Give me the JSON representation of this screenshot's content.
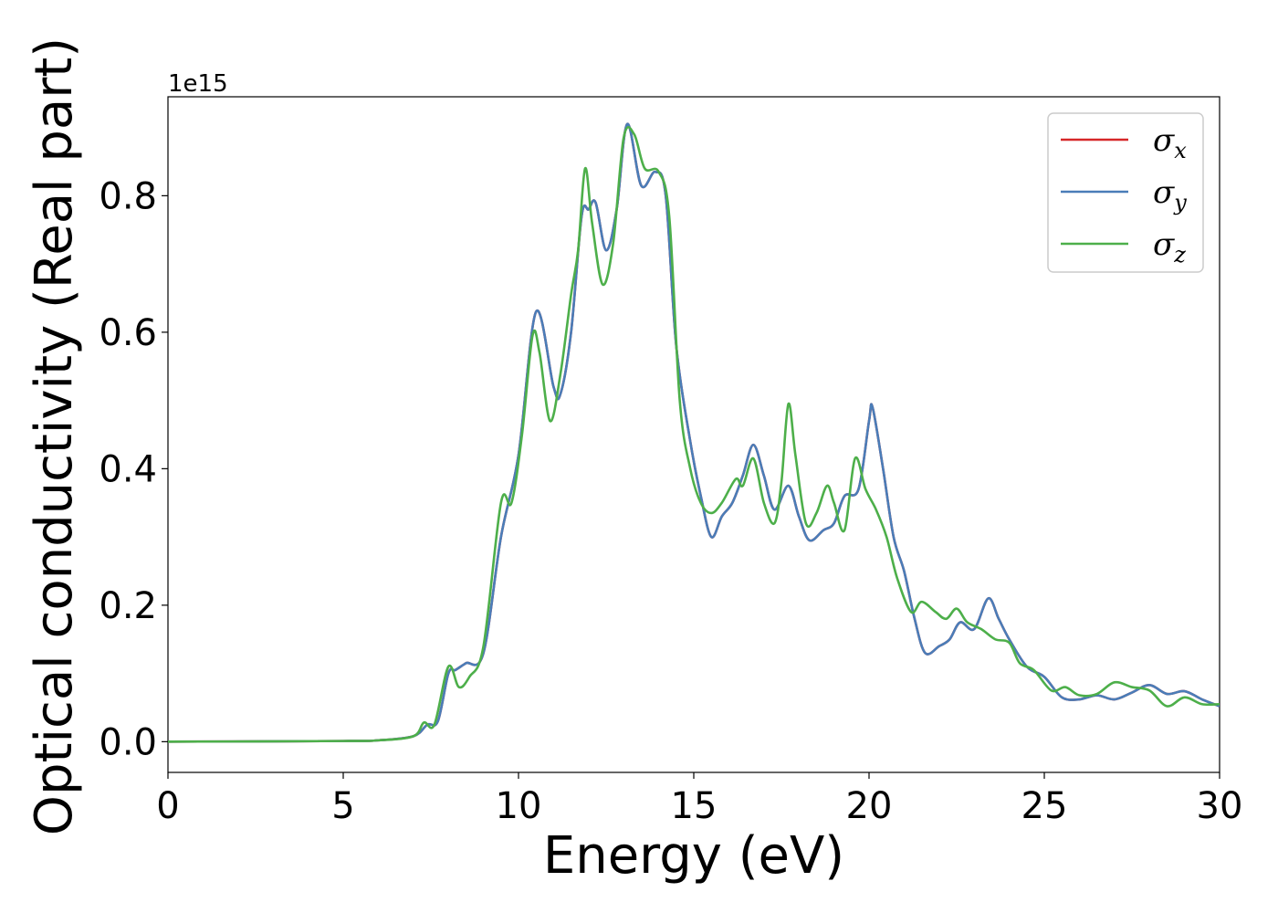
{
  "chart_data": {
    "type": "line",
    "xlabel": "Energy (eV)",
    "ylabel": "Optical conductivity (Real part)",
    "y_offset_label": "1e15",
    "xlim": [
      0,
      30
    ],
    "ylim": [
      -0.045,
      0.945
    ],
    "x_ticks": [
      0,
      5,
      10,
      15,
      20,
      25,
      30
    ],
    "y_ticks": [
      0.0,
      0.2,
      0.4,
      0.6,
      0.8
    ],
    "x_tick_labels": [
      "0",
      "5",
      "10",
      "15",
      "20",
      "25",
      "30"
    ],
    "y_tick_labels": [
      "0.0",
      "0.2",
      "0.4",
      "0.6",
      "0.8"
    ],
    "grid": false,
    "legend_position": "top-right",
    "series": [
      {
        "name": "σx",
        "base": "σ",
        "sub": "x",
        "color": "#d62728",
        "points": [
          [
            0,
            0
          ],
          [
            5,
            0.001
          ],
          [
            6,
            0.002
          ],
          [
            7,
            0.008
          ],
          [
            7.4,
            0.025
          ],
          [
            7.7,
            0.03
          ],
          [
            8,
            0.1
          ],
          [
            8.2,
            0.105
          ],
          [
            8.5,
            0.115
          ],
          [
            9,
            0.13
          ],
          [
            9.5,
            0.3
          ],
          [
            10,
            0.42
          ],
          [
            10.5,
            0.63
          ],
          [
            11,
            0.52
          ],
          [
            11.2,
            0.51
          ],
          [
            11.5,
            0.6
          ],
          [
            11.8,
            0.77
          ],
          [
            12,
            0.78
          ],
          [
            12.2,
            0.79
          ],
          [
            12.5,
            0.72
          ],
          [
            12.8,
            0.78
          ],
          [
            13.1,
            0.905
          ],
          [
            13.5,
            0.815
          ],
          [
            13.9,
            0.835
          ],
          [
            14.2,
            0.8
          ],
          [
            14.5,
            0.58
          ],
          [
            14.9,
            0.44
          ],
          [
            15.2,
            0.36
          ],
          [
            15.5,
            0.3
          ],
          [
            15.8,
            0.33
          ],
          [
            16.1,
            0.35
          ],
          [
            16.4,
            0.39
          ],
          [
            16.7,
            0.435
          ],
          [
            17,
            0.39
          ],
          [
            17.3,
            0.34
          ],
          [
            17.7,
            0.375
          ],
          [
            18,
            0.33
          ],
          [
            18.3,
            0.295
          ],
          [
            18.7,
            0.31
          ],
          [
            19,
            0.32
          ],
          [
            19.3,
            0.36
          ],
          [
            19.7,
            0.37
          ],
          [
            20,
            0.47
          ],
          [
            20.1,
            0.49
          ],
          [
            20.4,
            0.4
          ],
          [
            20.7,
            0.3
          ],
          [
            21,
            0.25
          ],
          [
            21.3,
            0.18
          ],
          [
            21.6,
            0.13
          ],
          [
            22,
            0.14
          ],
          [
            22.3,
            0.15
          ],
          [
            22.6,
            0.175
          ],
          [
            23,
            0.165
          ],
          [
            23.4,
            0.21
          ],
          [
            23.7,
            0.18
          ],
          [
            24,
            0.15
          ],
          [
            24.5,
            0.11
          ],
          [
            25,
            0.095
          ],
          [
            25.5,
            0.065
          ],
          [
            26,
            0.062
          ],
          [
            26.5,
            0.068
          ],
          [
            27,
            0.062
          ],
          [
            27.5,
            0.072
          ],
          [
            28,
            0.083
          ],
          [
            28.5,
            0.07
          ],
          [
            29,
            0.074
          ],
          [
            29.5,
            0.062
          ],
          [
            30,
            0.052
          ]
        ]
      },
      {
        "name": "σy",
        "base": "σ",
        "sub": "y",
        "color": "#4a7db8",
        "points": [
          [
            0,
            0
          ],
          [
            5,
            0.001
          ],
          [
            6,
            0.002
          ],
          [
            7,
            0.008
          ],
          [
            7.4,
            0.025
          ],
          [
            7.7,
            0.03
          ],
          [
            8,
            0.1
          ],
          [
            8.2,
            0.105
          ],
          [
            8.5,
            0.115
          ],
          [
            9,
            0.13
          ],
          [
            9.5,
            0.3
          ],
          [
            10,
            0.42
          ],
          [
            10.5,
            0.63
          ],
          [
            11,
            0.52
          ],
          [
            11.2,
            0.51
          ],
          [
            11.5,
            0.6
          ],
          [
            11.8,
            0.77
          ],
          [
            12,
            0.78
          ],
          [
            12.2,
            0.79
          ],
          [
            12.5,
            0.72
          ],
          [
            12.8,
            0.78
          ],
          [
            13.1,
            0.905
          ],
          [
            13.5,
            0.815
          ],
          [
            13.9,
            0.835
          ],
          [
            14.2,
            0.8
          ],
          [
            14.5,
            0.58
          ],
          [
            14.9,
            0.44
          ],
          [
            15.2,
            0.36
          ],
          [
            15.5,
            0.3
          ],
          [
            15.8,
            0.33
          ],
          [
            16.1,
            0.35
          ],
          [
            16.4,
            0.39
          ],
          [
            16.7,
            0.435
          ],
          [
            17,
            0.39
          ],
          [
            17.3,
            0.34
          ],
          [
            17.7,
            0.375
          ],
          [
            18,
            0.33
          ],
          [
            18.3,
            0.295
          ],
          [
            18.7,
            0.31
          ],
          [
            19,
            0.32
          ],
          [
            19.3,
            0.36
          ],
          [
            19.7,
            0.37
          ],
          [
            20,
            0.47
          ],
          [
            20.1,
            0.49
          ],
          [
            20.4,
            0.4
          ],
          [
            20.7,
            0.3
          ],
          [
            21,
            0.25
          ],
          [
            21.3,
            0.18
          ],
          [
            21.6,
            0.13
          ],
          [
            22,
            0.14
          ],
          [
            22.3,
            0.15
          ],
          [
            22.6,
            0.175
          ],
          [
            23,
            0.165
          ],
          [
            23.4,
            0.21
          ],
          [
            23.7,
            0.18
          ],
          [
            24,
            0.15
          ],
          [
            24.5,
            0.11
          ],
          [
            25,
            0.095
          ],
          [
            25.5,
            0.065
          ],
          [
            26,
            0.062
          ],
          [
            26.5,
            0.068
          ],
          [
            27,
            0.062
          ],
          [
            27.5,
            0.072
          ],
          [
            28,
            0.083
          ],
          [
            28.5,
            0.07
          ],
          [
            29,
            0.074
          ],
          [
            29.5,
            0.062
          ],
          [
            30,
            0.052
          ]
        ]
      },
      {
        "name": "σz",
        "base": "σ",
        "sub": "z",
        "color": "#4daf4a",
        "points": [
          [
            0,
            0
          ],
          [
            5,
            0.001
          ],
          [
            6,
            0.002
          ],
          [
            7,
            0.008
          ],
          [
            7.3,
            0.028
          ],
          [
            7.6,
            0.025
          ],
          [
            8,
            0.11
          ],
          [
            8.3,
            0.08
          ],
          [
            8.6,
            0.095
          ],
          [
            9,
            0.14
          ],
          [
            9.5,
            0.35
          ],
          [
            9.8,
            0.35
          ],
          [
            10.1,
            0.45
          ],
          [
            10.4,
            0.595
          ],
          [
            10.6,
            0.57
          ],
          [
            10.9,
            0.47
          ],
          [
            11.2,
            0.54
          ],
          [
            11.5,
            0.655
          ],
          [
            11.7,
            0.72
          ],
          [
            11.9,
            0.84
          ],
          [
            12.1,
            0.76
          ],
          [
            12.4,
            0.67
          ],
          [
            12.7,
            0.73
          ],
          [
            13,
            0.885
          ],
          [
            13.3,
            0.89
          ],
          [
            13.6,
            0.84
          ],
          [
            14,
            0.835
          ],
          [
            14.3,
            0.77
          ],
          [
            14.6,
            0.5
          ],
          [
            14.9,
            0.4
          ],
          [
            15.2,
            0.35
          ],
          [
            15.5,
            0.335
          ],
          [
            15.8,
            0.35
          ],
          [
            16.2,
            0.385
          ],
          [
            16.4,
            0.375
          ],
          [
            16.7,
            0.415
          ],
          [
            17,
            0.35
          ],
          [
            17.3,
            0.32
          ],
          [
            17.5,
            0.38
          ],
          [
            17.7,
            0.495
          ],
          [
            17.9,
            0.42
          ],
          [
            18.2,
            0.32
          ],
          [
            18.5,
            0.335
          ],
          [
            18.8,
            0.375
          ],
          [
            19,
            0.35
          ],
          [
            19.3,
            0.31
          ],
          [
            19.6,
            0.415
          ],
          [
            19.9,
            0.37
          ],
          [
            20.2,
            0.34
          ],
          [
            20.5,
            0.3
          ],
          [
            20.8,
            0.24
          ],
          [
            21.2,
            0.19
          ],
          [
            21.5,
            0.205
          ],
          [
            21.9,
            0.19
          ],
          [
            22.2,
            0.18
          ],
          [
            22.5,
            0.195
          ],
          [
            22.8,
            0.175
          ],
          [
            23.2,
            0.165
          ],
          [
            23.6,
            0.15
          ],
          [
            24,
            0.145
          ],
          [
            24.3,
            0.115
          ],
          [
            24.7,
            0.105
          ],
          [
            25.2,
            0.075
          ],
          [
            25.6,
            0.08
          ],
          [
            26,
            0.068
          ],
          [
            26.5,
            0.07
          ],
          [
            27,
            0.087
          ],
          [
            27.5,
            0.08
          ],
          [
            28,
            0.075
          ],
          [
            28.5,
            0.052
          ],
          [
            29,
            0.065
          ],
          [
            29.5,
            0.055
          ],
          [
            30,
            0.055
          ]
        ]
      }
    ]
  }
}
